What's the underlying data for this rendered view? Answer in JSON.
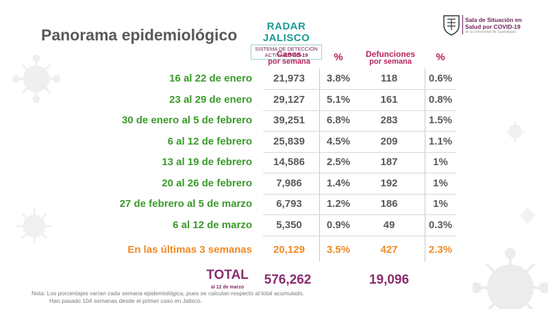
{
  "title": "Panorama epidemiológico",
  "radar": {
    "name": "RADAR JALISCO",
    "line1": "SISTEMA DE DETECCIÓN",
    "line2_a": "ACTIVA ",
    "line2_b": "COVID-19"
  },
  "logo": {
    "line1": "Sala de Situación en",
    "line2": "Salud por COVID-19",
    "sub": "de la Universidad de Guadalajara"
  },
  "headers": {
    "casos_1": "Casos",
    "casos_2": "por semana",
    "pct1": "%",
    "def_1": "Defunciones",
    "def_2": "por semana",
    "pct2": "%"
  },
  "rows": [
    {
      "label": "16 al 22 de enero",
      "casos": "21,973",
      "pct_casos": "3.8%",
      "defunciones": "118",
      "pct_def": "0.6%"
    },
    {
      "label": "23 al 29 de enero",
      "casos": "29,127",
      "pct_casos": "5.1%",
      "defunciones": "161",
      "pct_def": "0.8%"
    },
    {
      "label": "30 de enero al 5 de febrero",
      "casos": "39,251",
      "pct_casos": "6.8%",
      "defunciones": "283",
      "pct_def": "1.5%"
    },
    {
      "label": "6 al 12 de febrero",
      "casos": "25,839",
      "pct_casos": "4.5%",
      "defunciones": "209",
      "pct_def": "1.1%"
    },
    {
      "label": "13 al 19 de febrero",
      "casos": "14,586",
      "pct_casos": "2.5%",
      "defunciones": "187",
      "pct_def": "1%"
    },
    {
      "label": "20 al 26 de febrero",
      "casos": "7,986",
      "pct_casos": "1.4%",
      "defunciones": "192",
      "pct_def": "1%"
    },
    {
      "label": "27 de febrero al 5 de marzo",
      "casos": "6,793",
      "pct_casos": "1.2%",
      "defunciones": "186",
      "pct_def": "1%"
    },
    {
      "label": "6 al 12 de marzo",
      "casos": "5,350",
      "pct_casos": "0.9%",
      "defunciones": "49",
      "pct_def": "0.3%"
    }
  ],
  "summary": {
    "label": "En las últimas 3 semanas",
    "casos": "20,129",
    "pct_casos": "3.5%",
    "defunciones": "427",
    "pct_def": "2.3%"
  },
  "total": {
    "label": "TOTAL",
    "sub": "al 12 de marzo",
    "casos": "576,262",
    "defunciones": "19,096"
  },
  "note": {
    "line1": "Nota: Los porcentajes varían cada semana epidemiológica, pues se calculan respecto al total acumulado.",
    "line2": "Han pasado 104 semanas desde el primer caso en Jalisco."
  },
  "colors": {
    "green": "#3a9a2a",
    "magenta": "#b7235d",
    "orange": "#f08a24",
    "teal": "#1a9a94",
    "gray": "#58595b"
  }
}
